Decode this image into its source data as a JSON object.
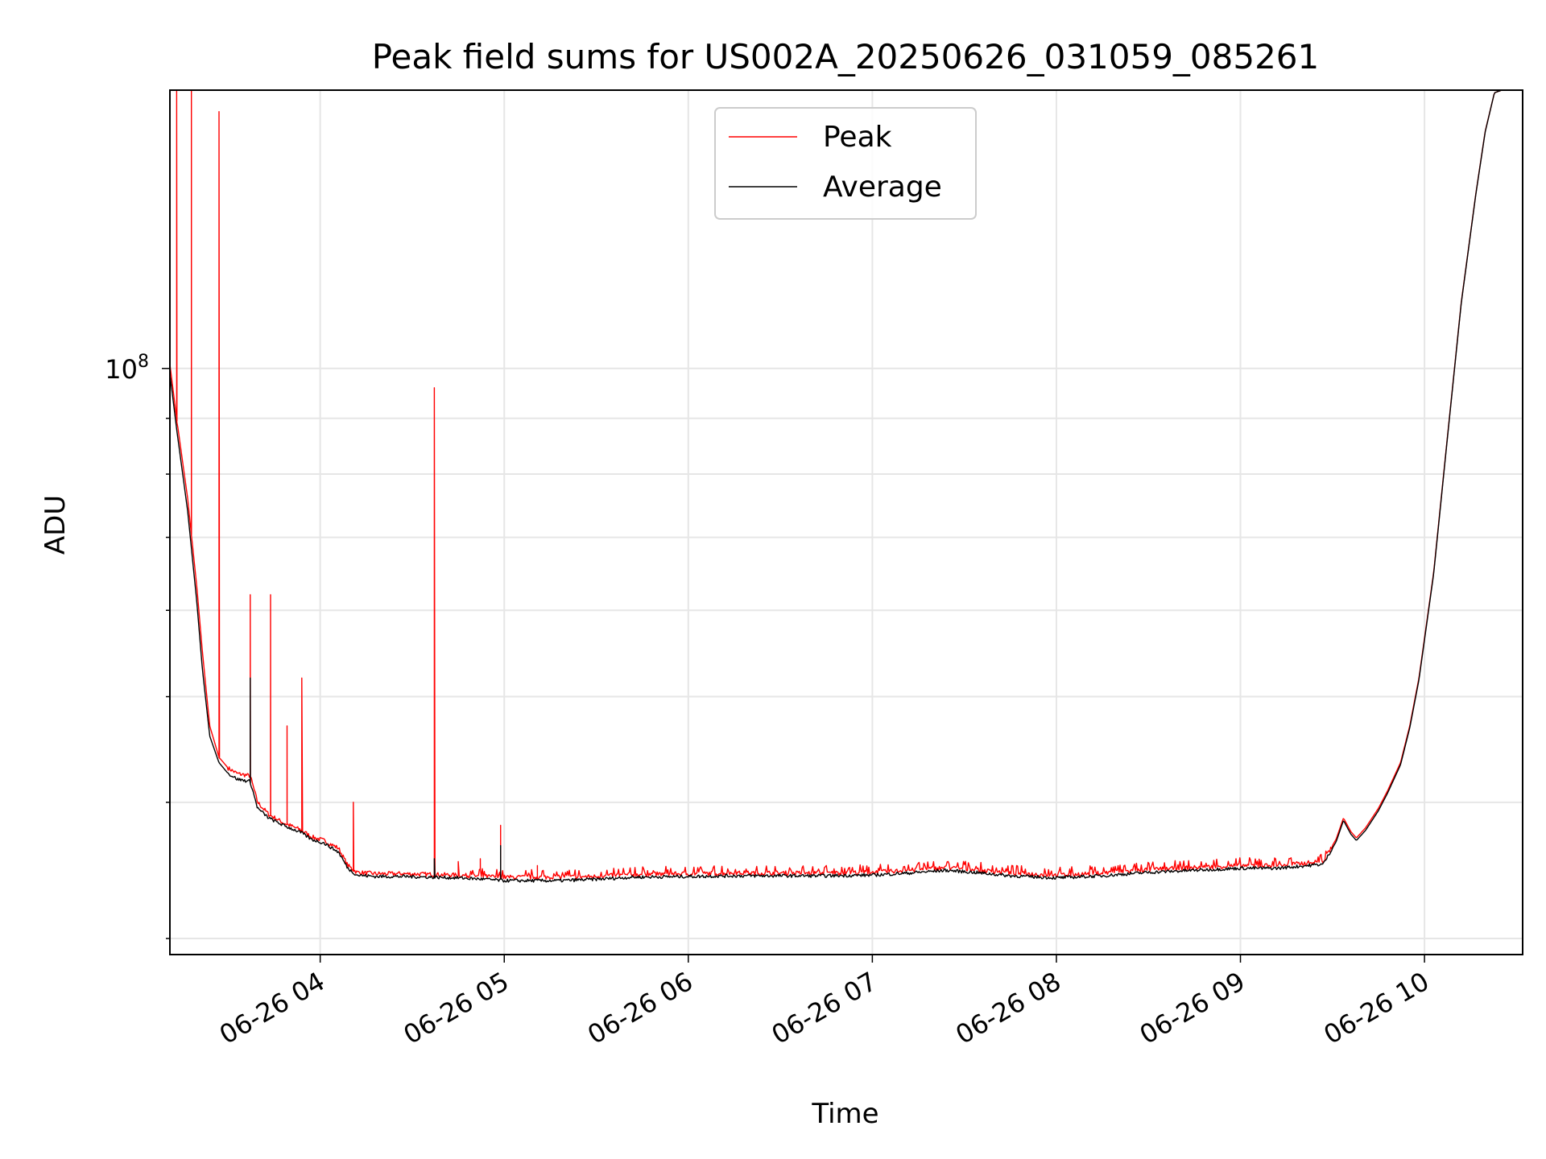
{
  "chart_data": {
    "type": "line",
    "title": "Peak field sums for US002A_20250626_031059_085261",
    "xlabel": "Time",
    "ylabel": "ADU",
    "y_scale": "log",
    "x_unit": "hours",
    "xlim": [
      "06-26 03:11",
      "06-26 10:32"
    ],
    "ylim": [
      29000000,
      180000000
    ],
    "y_tick_label": {
      "base": "10",
      "exp": "8"
    },
    "x_ticks": [
      "06-26 04",
      "06-26 05",
      "06-26 06",
      "06-26 07",
      "06-26 08",
      "06-26 09",
      "06-26 10"
    ],
    "grid": true,
    "legend": {
      "position": "top-center"
    },
    "series": [
      {
        "name": "Peak",
        "color": "#ff0000",
        "points": [
          [
            3.18,
            102000000
          ],
          [
            3.22,
            90000000
          ],
          [
            3.28,
            76000000
          ],
          [
            3.33,
            63000000
          ],
          [
            3.36,
            55000000
          ],
          [
            3.4,
            47000000
          ],
          [
            3.45,
            44000000
          ],
          [
            3.5,
            43000000
          ],
          [
            3.55,
            42500000
          ],
          [
            3.62,
            42300000
          ],
          [
            3.66,
            40000000
          ],
          [
            3.72,
            39000000
          ],
          [
            3.8,
            38300000
          ],
          [
            3.9,
            37700000
          ],
          [
            3.95,
            37200000
          ],
          [
            4.02,
            36900000
          ],
          [
            4.1,
            36300000
          ],
          [
            4.15,
            35000000
          ],
          [
            4.2,
            34500000
          ],
          [
            4.3,
            34400000
          ],
          [
            4.45,
            34400000
          ],
          [
            4.6,
            34350000
          ],
          [
            4.75,
            34300000
          ],
          [
            4.9,
            34200000
          ],
          [
            5.0,
            34150000
          ],
          [
            5.15,
            34150000
          ],
          [
            5.3,
            34150000
          ],
          [
            5.5,
            34200000
          ],
          [
            5.7,
            34350000
          ],
          [
            6.0,
            34400000
          ],
          [
            6.25,
            34450000
          ],
          [
            6.5,
            34450000
          ],
          [
            6.75,
            34450000
          ],
          [
            7.0,
            34500000
          ],
          [
            7.2,
            34650000
          ],
          [
            7.4,
            34850000
          ],
          [
            7.55,
            34700000
          ],
          [
            7.75,
            34450000
          ],
          [
            8.0,
            34300000
          ],
          [
            8.25,
            34450000
          ],
          [
            8.5,
            34700000
          ],
          [
            8.75,
            34850000
          ],
          [
            9.0,
            35000000
          ],
          [
            9.2,
            35000000
          ],
          [
            9.45,
            35300000
          ],
          [
            9.52,
            37000000
          ],
          [
            9.56,
            38700000
          ],
          [
            9.6,
            37600000
          ],
          [
            9.63,
            37100000
          ],
          [
            9.68,
            37900000
          ],
          [
            9.75,
            39500000
          ],
          [
            9.8,
            41000000
          ],
          [
            9.87,
            43500000
          ],
          [
            9.92,
            47000000
          ],
          [
            9.97,
            52000000
          ],
          [
            10.05,
            65000000
          ],
          [
            10.12,
            85000000
          ],
          [
            10.2,
            115000000
          ],
          [
            10.28,
            145000000
          ],
          [
            10.33,
            165000000
          ],
          [
            10.38,
            179000000
          ],
          [
            10.42,
            180000000
          ],
          [
            10.53,
            180000000
          ]
        ],
        "spikes": [
          [
            3.22,
            180000000
          ],
          [
            3.3,
            180000000
          ],
          [
            3.45,
            172000000
          ],
          [
            3.62,
            62000000
          ],
          [
            3.73,
            62000000
          ],
          [
            3.82,
            47000000
          ],
          [
            3.9,
            52000000
          ],
          [
            4.18,
            40000000
          ],
          [
            4.62,
            96000000
          ],
          [
            4.75,
            35300000
          ],
          [
            4.87,
            35500000
          ],
          [
            4.98,
            38100000
          ],
          [
            5.18,
            35000000
          ]
        ]
      },
      {
        "name": "Average",
        "color": "#000000",
        "points": [
          [
            3.18,
            100000000
          ],
          [
            3.22,
            88000000
          ],
          [
            3.28,
            74000000
          ],
          [
            3.33,
            61000000
          ],
          [
            3.36,
            53000000
          ],
          [
            3.4,
            46000000
          ],
          [
            3.45,
            43500000
          ],
          [
            3.5,
            42500000
          ],
          [
            3.55,
            42000000
          ],
          [
            3.62,
            41800000
          ],
          [
            3.66,
            39500000
          ],
          [
            3.72,
            38700000
          ],
          [
            3.8,
            38100000
          ],
          [
            3.9,
            37500000
          ],
          [
            3.95,
            37000000
          ],
          [
            4.02,
            36700000
          ],
          [
            4.1,
            36000000
          ],
          [
            4.15,
            34800000
          ],
          [
            4.2,
            34300000
          ],
          [
            4.3,
            34200000
          ],
          [
            4.45,
            34200000
          ],
          [
            4.6,
            34150000
          ],
          [
            4.75,
            34100000
          ],
          [
            4.9,
            34000000
          ],
          [
            5.0,
            33900000
          ],
          [
            5.15,
            33900000
          ],
          [
            5.3,
            33900000
          ],
          [
            5.5,
            34000000
          ],
          [
            5.7,
            34150000
          ],
          [
            6.0,
            34200000
          ],
          [
            6.25,
            34250000
          ],
          [
            6.5,
            34250000
          ],
          [
            6.75,
            34250000
          ],
          [
            7.0,
            34300000
          ],
          [
            7.2,
            34450000
          ],
          [
            7.4,
            34650000
          ],
          [
            7.55,
            34500000
          ],
          [
            7.75,
            34250000
          ],
          [
            8.0,
            34100000
          ],
          [
            8.25,
            34250000
          ],
          [
            8.5,
            34500000
          ],
          [
            8.75,
            34650000
          ],
          [
            9.0,
            34800000
          ],
          [
            9.2,
            34800000
          ],
          [
            9.45,
            35100000
          ],
          [
            9.52,
            36800000
          ],
          [
            9.56,
            38500000
          ],
          [
            9.6,
            37400000
          ],
          [
            9.63,
            36900000
          ],
          [
            9.68,
            37700000
          ],
          [
            9.75,
            39300000
          ],
          [
            9.8,
            40800000
          ],
          [
            9.87,
            43300000
          ],
          [
            9.92,
            46800000
          ],
          [
            9.97,
            51800000
          ],
          [
            10.05,
            64800000
          ],
          [
            10.12,
            84800000
          ],
          [
            10.2,
            114800000
          ],
          [
            10.28,
            144800000
          ],
          [
            10.33,
            164800000
          ],
          [
            10.38,
            179000000
          ],
          [
            10.42,
            180000000
          ],
          [
            10.53,
            180000000
          ]
        ],
        "spikes": [
          [
            3.62,
            52000000
          ],
          [
            4.62,
            35500000
          ],
          [
            4.98,
            36500000
          ]
        ]
      }
    ]
  }
}
